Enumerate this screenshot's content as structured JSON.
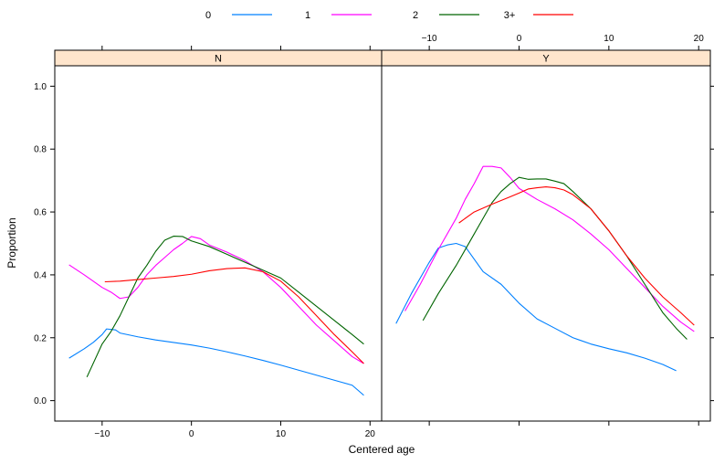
{
  "chart_data": {
    "type": "line",
    "xlabel": "Centered age",
    "ylabel": "Proportion",
    "xlim": [
      -15.3,
      21.3
    ],
    "ylim": [
      -0.065,
      1.065
    ],
    "xticks": [
      -10,
      0,
      10,
      20
    ],
    "yticks": [
      0.0,
      0.2,
      0.4,
      0.6,
      0.8,
      1.0
    ],
    "ytick_labels": [
      "0.0",
      "0.2",
      "0.4",
      "0.6",
      "0.8",
      "1.0"
    ],
    "grid": false,
    "legend_position": "top",
    "legend": [
      {
        "label": "0",
        "color": "#0080ff"
      },
      {
        "label": "1",
        "color": "#ff00ff"
      },
      {
        "label": "2",
        "color": "#006400"
      },
      {
        "label": "3+",
        "color": "#ff0000"
      }
    ],
    "panels": [
      {
        "label": "N",
        "series": [
          {
            "name": "0",
            "color": "#0080ff",
            "x": [
              -13.7,
              -12,
              -11,
              -10,
              -9.5,
              -8.5,
              -8,
              -6,
              -4,
              -2,
              0,
              2,
              4,
              6,
              8,
              10,
              12,
              14,
              16,
              18,
              19.3
            ],
            "y": [
              0.135,
              0.165,
              0.185,
              0.21,
              0.228,
              0.225,
              0.215,
              0.203,
              0.193,
              0.185,
              0.177,
              0.167,
              0.155,
              0.142,
              0.128,
              0.113,
              0.097,
              0.081,
              0.065,
              0.049,
              0.017
            ]
          },
          {
            "name": "1",
            "color": "#ff00ff",
            "x": [
              -13.7,
              -12,
              -10,
              -9,
              -8,
              -7,
              -6,
              -5,
              -4,
              -3,
              -2,
              -1,
              0,
              1,
              2,
              4,
              6,
              8,
              10,
              12,
              14,
              16,
              18,
              19.3
            ],
            "y": [
              0.432,
              0.4,
              0.36,
              0.345,
              0.325,
              0.33,
              0.36,
              0.4,
              0.43,
              0.455,
              0.48,
              0.5,
              0.522,
              0.515,
              0.495,
              0.472,
              0.445,
              0.41,
              0.36,
              0.3,
              0.24,
              0.19,
              0.14,
              0.118
            ]
          },
          {
            "name": "2",
            "color": "#006400",
            "x": [
              -11.7,
              -10,
              -9,
              -8,
              -7,
              -6,
              -5,
              -4,
              -3,
              -2,
              -1,
              0,
              2,
              4,
              6,
              8,
              10,
              12,
              14,
              16,
              18,
              19.3
            ],
            "y": [
              0.075,
              0.18,
              0.22,
              0.27,
              0.33,
              0.39,
              0.43,
              0.475,
              0.51,
              0.523,
              0.522,
              0.508,
              0.49,
              0.465,
              0.44,
              0.415,
              0.39,
              0.345,
              0.3,
              0.255,
              0.21,
              0.18
            ]
          },
          {
            "name": "3+",
            "color": "#ff0000",
            "x": [
              -9.7,
              -8,
              -6,
              -4,
              -2,
              0,
              2,
              4,
              6,
              8,
              10,
              12,
              14,
              16,
              18,
              19.3
            ],
            "y": [
              0.378,
              0.38,
              0.385,
              0.39,
              0.395,
              0.402,
              0.413,
              0.42,
              0.422,
              0.41,
              0.38,
              0.33,
              0.27,
              0.21,
              0.155,
              0.118
            ]
          }
        ]
      },
      {
        "label": "Y",
        "series": [
          {
            "name": "0",
            "color": "#0080ff",
            "x": [
              -13.7,
              -12,
              -10,
              -9,
              -8,
              -7,
              -6,
              -4,
              -2,
              0,
              2,
              4,
              6,
              8,
              10,
              12,
              14,
              16,
              17.5
            ],
            "y": [
              0.245,
              0.34,
              0.44,
              0.485,
              0.495,
              0.5,
              0.49,
              0.41,
              0.37,
              0.31,
              0.26,
              0.23,
              0.2,
              0.18,
              0.165,
              0.152,
              0.135,
              0.115,
              0.095
            ]
          },
          {
            "name": "1",
            "color": "#ff00ff",
            "x": [
              -12.7,
              -11,
              -9,
              -7,
              -6,
              -5,
              -4,
              -3,
              -2,
              -1,
              0,
              2,
              4,
              6,
              8,
              10,
              12,
              14,
              16,
              18,
              19.5
            ],
            "y": [
              0.285,
              0.37,
              0.48,
              0.58,
              0.64,
              0.69,
              0.745,
              0.745,
              0.74,
              0.71,
              0.675,
              0.64,
              0.61,
              0.575,
              0.53,
              0.48,
              0.42,
              0.36,
              0.3,
              0.25,
              0.22
            ]
          },
          {
            "name": "2",
            "color": "#006400",
            "x": [
              -10.7,
              -9,
              -7,
              -5,
              -3,
              -2,
              -1,
              0,
              1,
              2,
              3,
              4,
              5,
              6,
              8,
              10,
              12,
              14,
              16,
              17.5,
              18.7
            ],
            "y": [
              0.255,
              0.34,
              0.43,
              0.53,
              0.63,
              0.665,
              0.69,
              0.71,
              0.704,
              0.705,
              0.705,
              0.698,
              0.69,
              0.665,
              0.61,
              0.54,
              0.46,
              0.37,
              0.28,
              0.23,
              0.195
            ]
          },
          {
            "name": "3+",
            "color": "#ff0000",
            "x": [
              -6.7,
              -5,
              -3,
              -1,
              0,
              1,
              2,
              3,
              4,
              5,
              6,
              8,
              10,
              12,
              14,
              16,
              18,
              19.5
            ],
            "y": [
              0.565,
              0.6,
              0.625,
              0.648,
              0.66,
              0.673,
              0.677,
              0.68,
              0.677,
              0.67,
              0.655,
              0.61,
              0.54,
              0.46,
              0.39,
              0.33,
              0.28,
              0.24
            ]
          }
        ]
      }
    ]
  }
}
